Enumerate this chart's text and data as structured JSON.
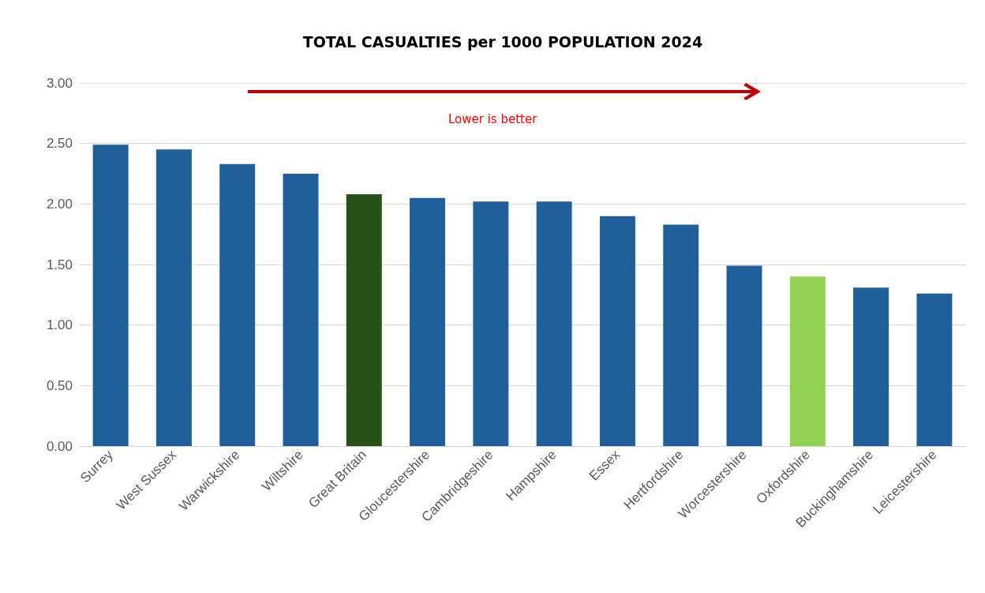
{
  "chart_data": {
    "type": "bar",
    "title": "TOTAL CASUALTIES per 1000 POPULATION 2024",
    "categories": [
      "Surrey",
      "West Sussex",
      "Warwickshire",
      "Wiltshire",
      "Great Britain",
      "Gloucestershire",
      "Cambridgeshire",
      "Hampshire",
      "Essex",
      "Hertfordshire",
      "Worcestershire",
      "Oxfordshire",
      "Buckinghamshire",
      "Leicestershire"
    ],
    "values": [
      2.49,
      2.45,
      2.33,
      2.25,
      2.08,
      2.05,
      2.02,
      2.02,
      1.9,
      1.83,
      1.49,
      1.4,
      1.31,
      1.26
    ],
    "colors": [
      "#215f9a",
      "#215f9a",
      "#215f9a",
      "#215f9a",
      "#2a5119",
      "#215f9a",
      "#215f9a",
      "#215f9a",
      "#215f9a",
      "#215f9a",
      "#215f9a",
      "#92d050",
      "#215f9a",
      "#215f9a"
    ],
    "ylim": [
      0,
      3
    ],
    "yticks": [
      {
        "value": 0,
        "label": "0.00"
      },
      {
        "value": 0.5,
        "label": "0.50"
      },
      {
        "value": 1,
        "label": "1.00"
      },
      {
        "value": 1.5,
        "label": "1.50"
      },
      {
        "value": 2,
        "label": "2.00"
      },
      {
        "value": 2.5,
        "label": "2.50"
      },
      {
        "value": 3,
        "label": "3.00"
      }
    ],
    "grid": "y",
    "annotations": [
      "Lower is better"
    ]
  }
}
